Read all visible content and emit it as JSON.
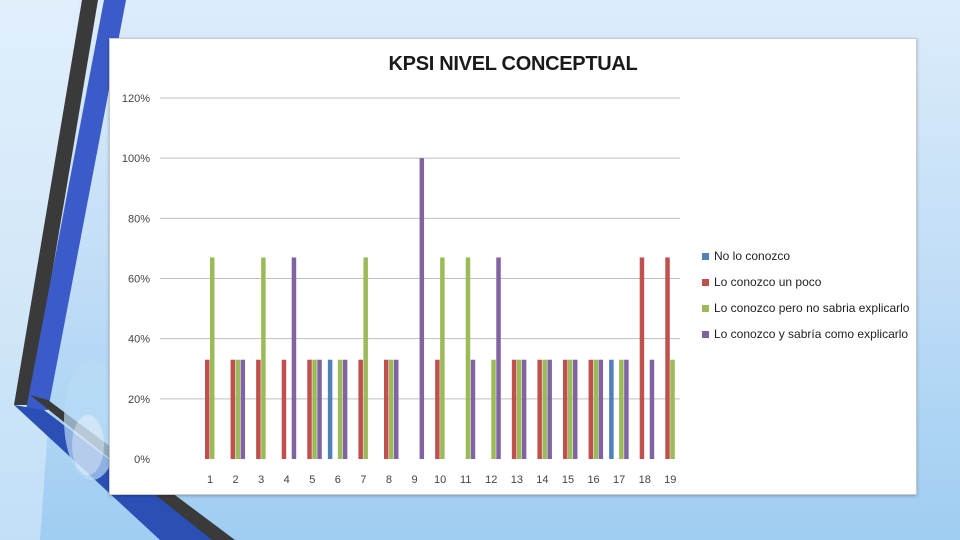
{
  "chart_data": {
    "type": "bar",
    "title": "KPSI  NIVEL CONCEPTUAL",
    "xlabel": "",
    "ylabel": "",
    "ylim": [
      0,
      1.2
    ],
    "yticks": [
      0,
      0.2,
      0.4,
      0.6,
      0.8,
      1.0,
      1.2
    ],
    "ytick_labels": [
      "0%",
      "20%",
      "40%",
      "60%",
      "80%",
      "100%",
      "120%"
    ],
    "grid": true,
    "legend_position": "right",
    "categories": [
      "1",
      "2",
      "3",
      "4",
      "5",
      "6",
      "7",
      "8",
      "9",
      "10",
      "11",
      "12",
      "13",
      "14",
      "15",
      "16",
      "17",
      "18",
      "19"
    ],
    "series": [
      {
        "name": "No lo conozco",
        "color": "#4f81bd",
        "values": [
          0,
          0,
          0,
          0,
          0,
          0.33,
          0,
          0,
          0,
          0,
          0,
          0,
          0,
          0,
          0,
          0,
          0.33,
          0,
          0
        ]
      },
      {
        "name": "Lo conozco un poco",
        "color": "#c0504d",
        "values": [
          0.33,
          0.33,
          0.33,
          0.33,
          0.33,
          0,
          0.33,
          0.33,
          0,
          0.33,
          0,
          0,
          0.33,
          0.33,
          0.33,
          0.33,
          0,
          0.67,
          0.67
        ]
      },
      {
        "name": "Lo conozco pero no sabria explicarlo",
        "color": "#9bbb59",
        "values": [
          0.67,
          0.33,
          0.67,
          0,
          0.33,
          0.33,
          0.67,
          0.33,
          0,
          0.67,
          0.67,
          0.33,
          0.33,
          0.33,
          0.33,
          0.33,
          0.33,
          0,
          0.33
        ]
      },
      {
        "name": "Lo conozco y sabría como explicarlo",
        "color": "#8064a2",
        "values": [
          0,
          0.33,
          0,
          0.67,
          0.33,
          0.33,
          0,
          0.33,
          1.0,
          0,
          0.33,
          0.67,
          0.33,
          0.33,
          0.33,
          0.33,
          0.33,
          0.33,
          0
        ]
      }
    ]
  }
}
